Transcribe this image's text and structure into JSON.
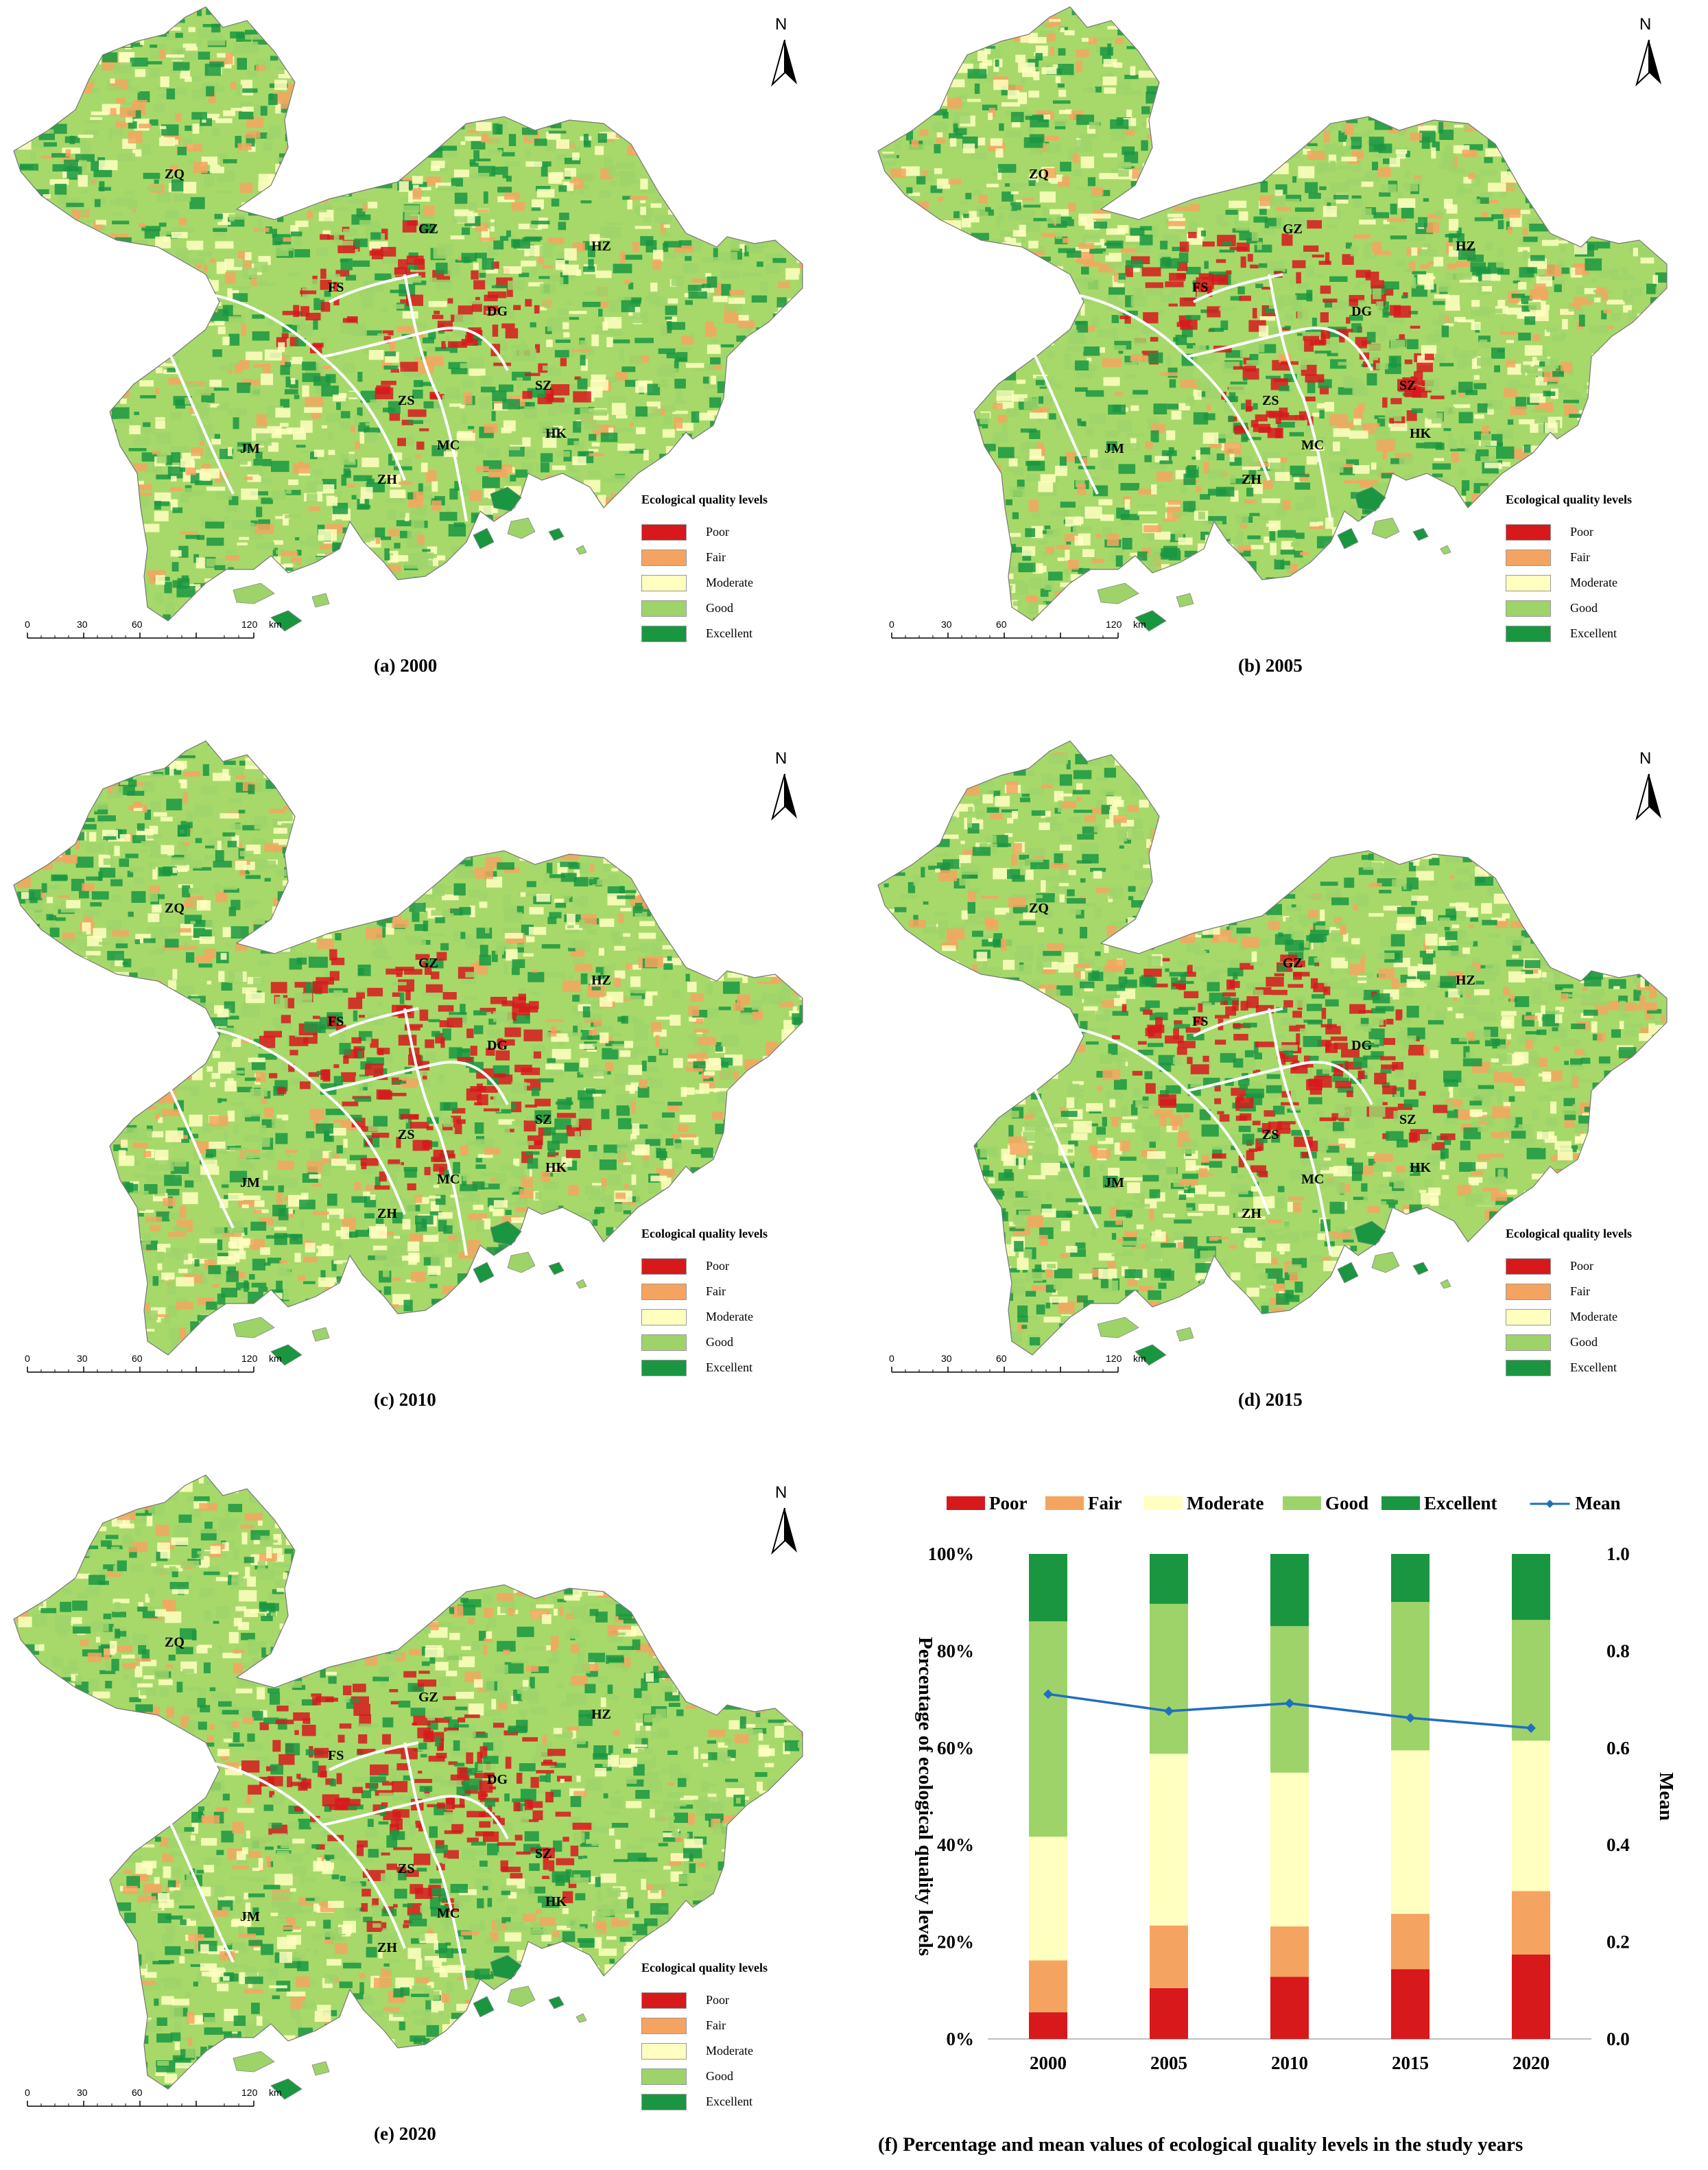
{
  "panels": [
    {
      "id": "a",
      "caption": "(a)  2000",
      "year": "2000",
      "poor_level": 0.05
    },
    {
      "id": "b",
      "caption": "(b)  2005",
      "year": "2005",
      "poor_level": 0.1
    },
    {
      "id": "c",
      "caption": "(c)  2010",
      "year": "2010",
      "poor_level": 0.13
    },
    {
      "id": "d",
      "caption": "(d)  2015",
      "year": "2015",
      "poor_level": 0.14
    },
    {
      "id": "e",
      "caption": "(e)  2020",
      "year": "2020",
      "poor_level": 0.17
    }
  ],
  "cities": {
    "ZQ": "ZQ",
    "GZ": "GZ",
    "HZ": "HZ",
    "FS": "FS",
    "DG": "DG",
    "SZ": "SZ",
    "ZS": "ZS",
    "HK": "HK",
    "MC": "MC",
    "JM": "JM",
    "ZH": "ZH"
  },
  "north": "N",
  "legend": {
    "title": "Ecological quality levels",
    "items": [
      {
        "label": "Poor",
        "color": "#d7191c"
      },
      {
        "label": "Fair",
        "color": "#f4a460"
      },
      {
        "label": "Moderate",
        "color": "#ffffc0"
      },
      {
        "label": "Good",
        "color": "#9ed36a"
      },
      {
        "label": "Excellent",
        "color": "#1a9641"
      }
    ]
  },
  "scalebar": {
    "ticks": [
      "0",
      "30",
      "60",
      "120"
    ],
    "unit": "km"
  },
  "chart_caption": "(f)  Percentage and mean values of ecological quality levels in the study years",
  "chart_data": {
    "type": "bar",
    "stacked": true,
    "categories": [
      "2000",
      "2005",
      "2010",
      "2015",
      "2020"
    ],
    "series": [
      {
        "name": "Poor",
        "color": "#d7191c",
        "values": [
          5.5,
          10.5,
          12.8,
          14.4,
          17.4
        ]
      },
      {
        "name": "Fair",
        "color": "#f4a460",
        "values": [
          10.7,
          12.9,
          10.4,
          11.4,
          13.1
        ]
      },
      {
        "name": "Moderate",
        "color": "#ffffc0",
        "values": [
          25.5,
          35.4,
          31.7,
          33.7,
          31.0
        ]
      },
      {
        "name": "Good",
        "color": "#9ed36a",
        "values": [
          44.4,
          30.9,
          30.2,
          30.6,
          24.9
        ]
      },
      {
        "name": "Excellent",
        "color": "#1a9641",
        "values": [
          13.9,
          10.3,
          14.9,
          9.9,
          13.6
        ]
      }
    ],
    "line": {
      "name": "Mean",
      "color": "#1f6fbf",
      "values": [
        0.711,
        0.676,
        0.692,
        0.662,
        0.641
      ]
    },
    "ylabel": "Percentage of ecological quality levels",
    "y2label": "Mean",
    "ylim": [
      0,
      100
    ],
    "y2lim": [
      0,
      1.0
    ],
    "yticks": [
      "0%",
      "20%",
      "40%",
      "60%",
      "80%",
      "100%"
    ],
    "y2ticks": [
      "0.0",
      "0.2",
      "0.4",
      "0.6",
      "0.8",
      "1.0"
    ],
    "legend_position": "top"
  }
}
